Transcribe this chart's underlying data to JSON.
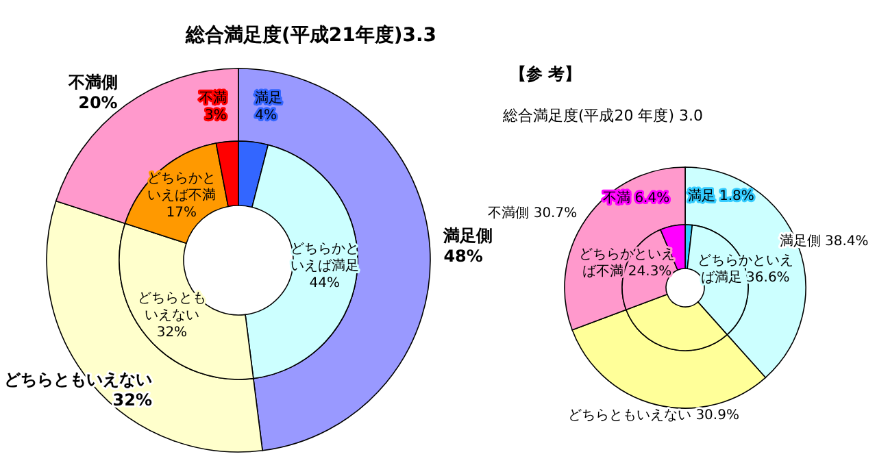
{
  "chart_data": [
    {
      "type": "donut",
      "title": "総合満足度(平成21年度)3.3",
      "categories": [
        "満足側",
        "どちらともいえない",
        "不満側"
      ],
      "values": [
        48,
        32,
        20
      ],
      "colors": [
        "#9999ff",
        "#ffffcc",
        "#ff99cc"
      ],
      "value_labels": [
        "48%",
        "32%",
        "20%"
      ]
    },
    {
      "type": "donut",
      "categories": [
        "満足",
        "どちらかといえば満足",
        "どちらともいえない",
        "どちらかといえば不満",
        "不満"
      ],
      "values": [
        4,
        44,
        32,
        17,
        3
      ],
      "colors": [
        "#3366ff",
        "#ccffff",
        "#ffffcc",
        "#ff9900",
        "#ff0000"
      ],
      "value_labels": [
        "4%",
        "44%",
        "32%",
        "17%",
        "3%"
      ]
    },
    {
      "type": "donut",
      "title": "総合満足度(平成20 年度) 3.0",
      "annotations": [
        "【参 考】"
      ],
      "categories": [
        "満足側",
        "どちらともいえない",
        "不満側"
      ],
      "values": [
        38.4,
        30.9,
        30.7
      ],
      "colors": [
        "#ccffff",
        "#ffff99",
        "#ff99cc"
      ],
      "value_labels": [
        "38.4%",
        "30.9%",
        "30.7%"
      ]
    },
    {
      "type": "donut",
      "categories": [
        "満足",
        "どちらかといえば満足",
        null,
        "どちらかといえば不満",
        "不満"
      ],
      "values": [
        1.8,
        36.6,
        30.9,
        24.3,
        6.4
      ],
      "colors": [
        "#33ccff",
        "#ccffff",
        "#ffff99",
        "#ff99cc",
        "#ff00ff"
      ],
      "value_labels": [
        "1.8%",
        "36.6%",
        null,
        "24.3%",
        "6.4%"
      ]
    }
  ]
}
